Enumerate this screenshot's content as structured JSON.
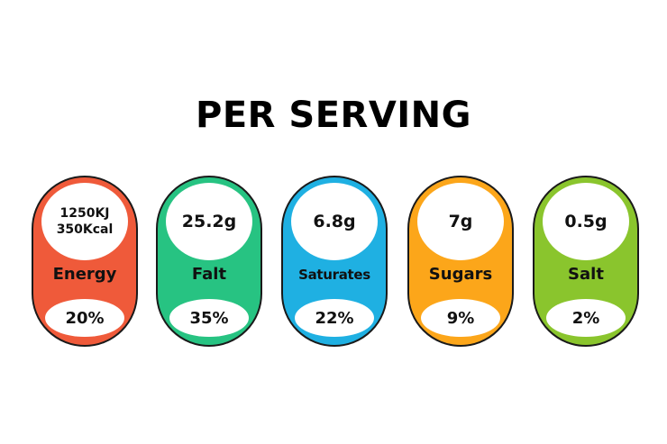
{
  "title": "PER SERVING",
  "labels": [
    {
      "amount_line1": "1250KJ",
      "amount_line2": "350Kcal",
      "name": "Energy",
      "percent": "20%",
      "color": "#ef5a3a"
    },
    {
      "amount_line1": "25.2g",
      "name": "Falt",
      "percent": "35%",
      "color": "#27c382"
    },
    {
      "amount_line1": "6.8g",
      "name": "Saturates",
      "percent": "22%",
      "color": "#1fb0e2"
    },
    {
      "amount_line1": "7g",
      "name": "Sugars",
      "percent": "9%",
      "color": "#fca61a"
    },
    {
      "amount_line1": "0.5g",
      "name": "Salt",
      "percent": "2%",
      "color": "#8ac52d"
    }
  ]
}
